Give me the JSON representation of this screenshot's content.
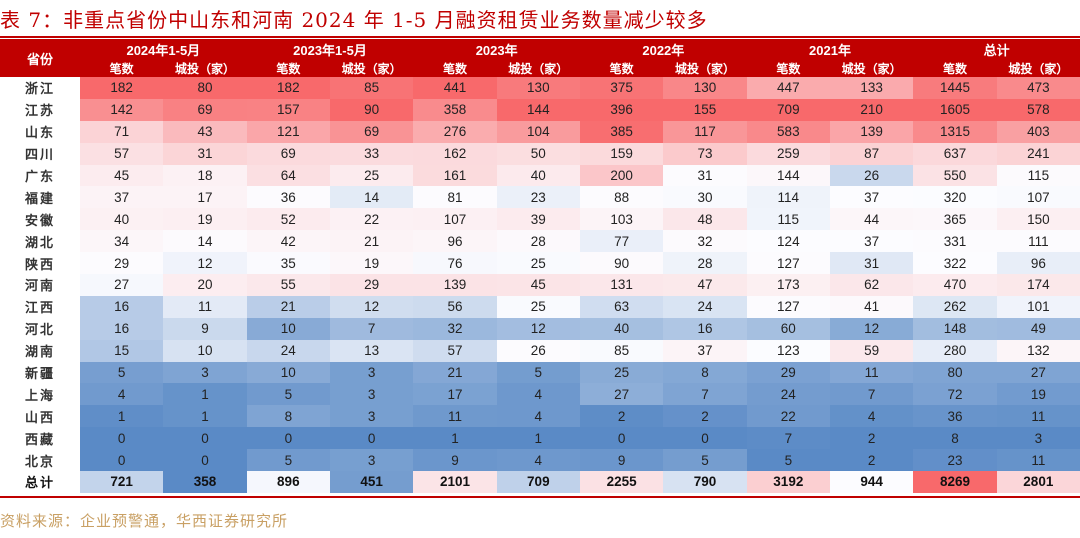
{
  "title": "表 7：非重点省份中山东和河南 2024 年 1-5 月融资租赁业务数量减少较多",
  "header": {
    "province_label": "省份",
    "groups": [
      "2024年1-5月",
      "2023年1-5月",
      "2023年",
      "2022年",
      "2021年",
      "总计"
    ],
    "sub": [
      "笔数",
      "城投（家）"
    ]
  },
  "color_scale": {
    "low": "#5a8ac6",
    "mid": "#fcfcff",
    "high": "#f8696b"
  },
  "rows": [
    {
      "province": "浙江",
      "values": [
        182,
        80,
        182,
        85,
        441,
        130,
        375,
        130,
        447,
        133,
        1445,
        473
      ]
    },
    {
      "province": "江苏",
      "values": [
        142,
        69,
        157,
        90,
        358,
        144,
        396,
        155,
        709,
        210,
        1605,
        578
      ]
    },
    {
      "province": "山东",
      "values": [
        71,
        43,
        121,
        69,
        276,
        104,
        385,
        117,
        583,
        139,
        1315,
        403
      ]
    },
    {
      "province": "四川",
      "values": [
        57,
        31,
        69,
        33,
        162,
        50,
        159,
        73,
        259,
        87,
        637,
        241
      ]
    },
    {
      "province": "广东",
      "values": [
        45,
        18,
        64,
        25,
        161,
        40,
        200,
        31,
        144,
        26,
        550,
        115
      ]
    },
    {
      "province": "福建",
      "values": [
        37,
        17,
        36,
        14,
        81,
        23,
        88,
        30,
        114,
        37,
        320,
        107
      ]
    },
    {
      "province": "安徽",
      "values": [
        40,
        19,
        52,
        22,
        107,
        39,
        103,
        48,
        115,
        44,
        365,
        150
      ]
    },
    {
      "province": "湖北",
      "values": [
        34,
        14,
        42,
        21,
        96,
        28,
        77,
        32,
        124,
        37,
        331,
        111
      ]
    },
    {
      "province": "陕西",
      "values": [
        29,
        12,
        35,
        19,
        76,
        25,
        90,
        28,
        127,
        31,
        322,
        96
      ]
    },
    {
      "province": "河南",
      "values": [
        27,
        20,
        55,
        29,
        139,
        45,
        131,
        47,
        173,
        62,
        470,
        174
      ]
    },
    {
      "province": "江西",
      "values": [
        16,
        11,
        21,
        12,
        56,
        25,
        63,
        24,
        127,
        41,
        262,
        101
      ]
    },
    {
      "province": "河北",
      "values": [
        16,
        9,
        10,
        7,
        32,
        12,
        40,
        16,
        60,
        12,
        148,
        49
      ]
    },
    {
      "province": "湖南",
      "values": [
        15,
        10,
        24,
        13,
        57,
        26,
        85,
        37,
        123,
        59,
        280,
        132
      ]
    },
    {
      "province": "新疆",
      "values": [
        5,
        3,
        10,
        3,
        21,
        5,
        25,
        8,
        29,
        11,
        80,
        27
      ]
    },
    {
      "province": "上海",
      "values": [
        4,
        1,
        5,
        3,
        17,
        4,
        27,
        7,
        24,
        7,
        72,
        19
      ]
    },
    {
      "province": "山西",
      "values": [
        1,
        1,
        8,
        3,
        11,
        4,
        2,
        2,
        22,
        4,
        36,
        11
      ]
    },
    {
      "province": "西藏",
      "values": [
        0,
        0,
        0,
        0,
        1,
        1,
        0,
        0,
        7,
        2,
        8,
        3
      ]
    },
    {
      "province": "北京",
      "values": [
        0,
        0,
        5,
        3,
        9,
        4,
        9,
        5,
        5,
        2,
        23,
        11
      ]
    }
  ],
  "total": {
    "label": "总计",
    "values": [
      721,
      358,
      896,
      451,
      2101,
      709,
      2255,
      790,
      3192,
      944,
      8269,
      2801
    ]
  },
  "source": "资料来源：企业预警通，华西证券研究所"
}
